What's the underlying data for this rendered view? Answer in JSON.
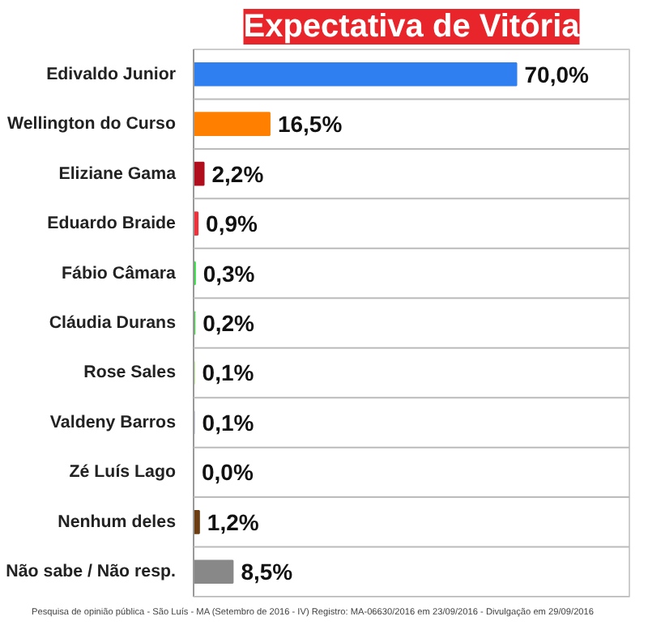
{
  "chart_data": {
    "type": "bar",
    "orientation": "horizontal",
    "title": "Expectativa de Vitória",
    "categories": [
      "Edivaldo Junior",
      "Wellington do Curso",
      "Eliziane Gama",
      "Eduardo Braide",
      "Fábio Câmara",
      "Cláudia Durans",
      "Rose Sales",
      "Valdeny Barros",
      "Zé Luís Lago",
      "Nenhum deles",
      "Não sabe / Não resp."
    ],
    "values": [
      70.0,
      16.5,
      2.2,
      0.9,
      0.3,
      0.2,
      0.1,
      0.1,
      0.0,
      1.2,
      8.5
    ],
    "value_labels": [
      "70,0%",
      "16,5%",
      "2,2%",
      "0,9%",
      "0,3%",
      "0,2%",
      "0,1%",
      "0,1%",
      "0,0%",
      "1,2%",
      "8,5%"
    ],
    "colors": [
      "#2f7ff0",
      "#ff8000",
      "#b00e1c",
      "#f0303a",
      "#22dd33",
      "#33dd33",
      "#99ee55",
      "#aab0c8",
      "#999999",
      "#6b3d10",
      "#888888"
    ],
    "grid": "y",
    "annotations": [
      "Pesquisa de opinião pública - São Luís - MA (Setembro de 2016 - IV) Registro: MA-06630/2016 em 23/09/2016 - Divulgação em 29/09/2016"
    ]
  }
}
